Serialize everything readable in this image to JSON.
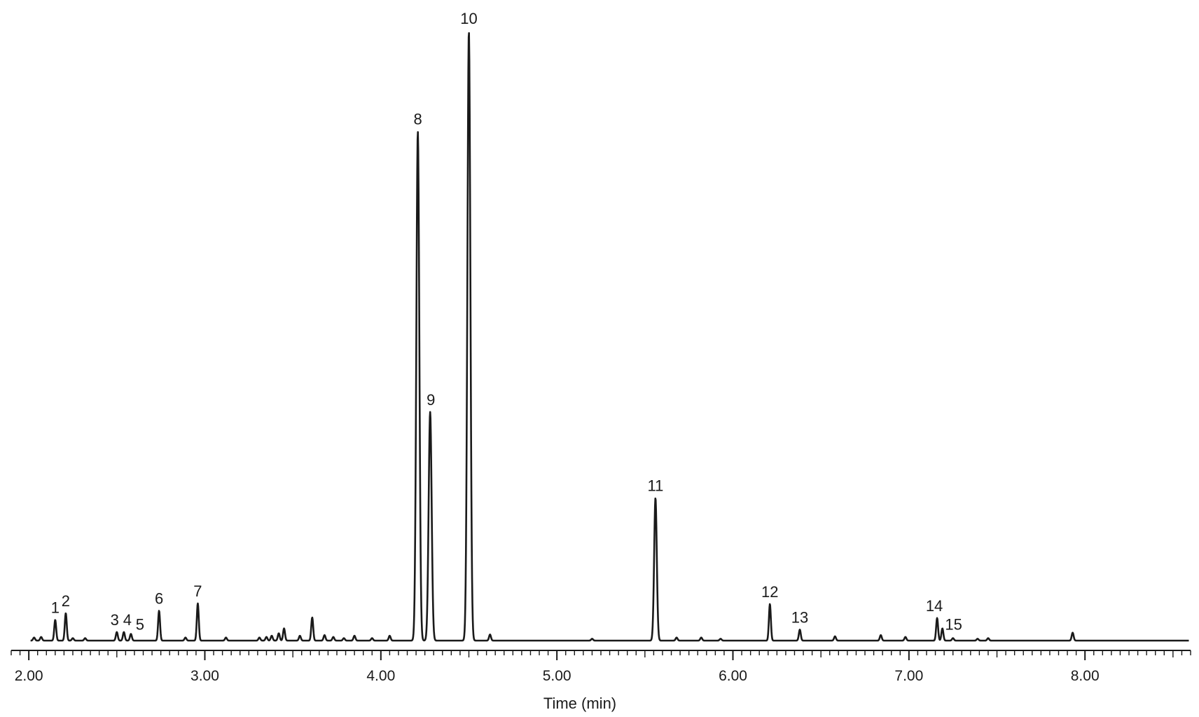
{
  "chart_data": {
    "type": "line",
    "title": "",
    "xlabel": "Time (min)",
    "ylabel": "",
    "xlim": [
      1.9,
      8.6
    ],
    "ylim": [
      0,
      100
    ],
    "x_major_ticks": [
      2.0,
      3.0,
      4.0,
      5.0,
      6.0,
      7.0,
      8.0
    ],
    "x_tick_labels": [
      "2.00",
      "3.00",
      "4.00",
      "5.00",
      "6.00",
      "7.00",
      "8.00"
    ],
    "minor_tick_step": 0.05,
    "line_color": "#1a1a1a",
    "baseline": 0,
    "peaks": [
      {
        "label": "1",
        "x": 2.15,
        "y": 3.4
      },
      {
        "label": "2",
        "x": 2.21,
        "y": 4.5
      },
      {
        "label": "3",
        "x": 2.5,
        "y": 1.4
      },
      {
        "label": "4",
        "x": 2.54,
        "y": 1.4
      },
      {
        "label": "5",
        "x": 2.58,
        "y": 1.1
      },
      {
        "label": "6",
        "x": 2.74,
        "y": 4.9
      },
      {
        "label": "7",
        "x": 2.96,
        "y": 6.1
      },
      {
        "label": "8",
        "x": 4.21,
        "y": 83.5
      },
      {
        "label": "9",
        "x": 4.28,
        "y": 37.5
      },
      {
        "label": "10",
        "x": 4.5,
        "y": 100
      },
      {
        "label": "11",
        "x": 5.56,
        "y": 23.4
      },
      {
        "label": "12",
        "x": 6.21,
        "y": 6.0
      },
      {
        "label": "13",
        "x": 6.38,
        "y": 1.8
      },
      {
        "label": "14",
        "x": 7.16,
        "y": 3.7
      },
      {
        "label": "15",
        "x": 7.19,
        "y": 2.0
      }
    ],
    "minor_peaks": [
      {
        "x": 2.03,
        "y": 0.5
      },
      {
        "x": 2.07,
        "y": 0.6
      },
      {
        "x": 2.25,
        "y": 0.4
      },
      {
        "x": 2.32,
        "y": 0.4
      },
      {
        "x": 2.89,
        "y": 0.5
      },
      {
        "x": 3.12,
        "y": 0.5
      },
      {
        "x": 3.31,
        "y": 0.5
      },
      {
        "x": 3.35,
        "y": 0.6
      },
      {
        "x": 3.38,
        "y": 0.8
      },
      {
        "x": 3.42,
        "y": 1.2
      },
      {
        "x": 3.45,
        "y": 2.0
      },
      {
        "x": 3.54,
        "y": 0.8
      },
      {
        "x": 3.61,
        "y": 3.8
      },
      {
        "x": 3.68,
        "y": 0.9
      },
      {
        "x": 3.73,
        "y": 0.6
      },
      {
        "x": 3.79,
        "y": 0.4
      },
      {
        "x": 3.85,
        "y": 0.8
      },
      {
        "x": 3.95,
        "y": 0.4
      },
      {
        "x": 4.05,
        "y": 0.8
      },
      {
        "x": 4.62,
        "y": 1.0
      },
      {
        "x": 5.2,
        "y": 0.3
      },
      {
        "x": 5.68,
        "y": 0.5
      },
      {
        "x": 5.82,
        "y": 0.5
      },
      {
        "x": 5.93,
        "y": 0.3
      },
      {
        "x": 6.58,
        "y": 0.7
      },
      {
        "x": 6.84,
        "y": 0.9
      },
      {
        "x": 6.98,
        "y": 0.6
      },
      {
        "x": 7.25,
        "y": 0.4
      },
      {
        "x": 7.39,
        "y": 0.3
      },
      {
        "x": 7.45,
        "y": 0.4
      },
      {
        "x": 7.93,
        "y": 1.3
      }
    ]
  }
}
